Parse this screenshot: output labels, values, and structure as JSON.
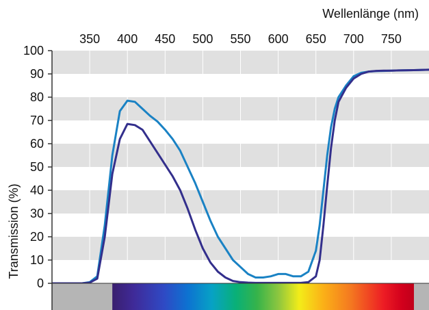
{
  "chart_data": {
    "type": "line",
    "title": "",
    "xlabel": "Wellenlänge (nm)",
    "ylabel": "Transmission (%)",
    "x_ticks": [
      350,
      400,
      450,
      500,
      550,
      600,
      650,
      700,
      750
    ],
    "y_ticks": [
      0,
      10,
      20,
      30,
      40,
      50,
      60,
      70,
      80,
      90,
      100
    ],
    "xlim": [
      300,
      800
    ],
    "ylim": [
      0,
      100
    ],
    "x_axis_position": "top",
    "grid": "horizontal alternating bands and vertical lines",
    "band_colors": [
      "#e0e0e0",
      "#ffffff"
    ],
    "spectrum_strip": {
      "from_nm": 380,
      "to_nm": 780,
      "side_color": "#b5b5b5"
    },
    "series": [
      {
        "color": "#1a82c4",
        "x": [
          300,
          340,
          350,
          360,
          370,
          380,
          390,
          400,
          410,
          420,
          430,
          440,
          450,
          460,
          470,
          480,
          490,
          500,
          510,
          520,
          530,
          540,
          550,
          560,
          570,
          580,
          590,
          600,
          610,
          620,
          630,
          640,
          650,
          655,
          660,
          665,
          670,
          675,
          680,
          690,
          700,
          710,
          720,
          730,
          740,
          750,
          760,
          780,
          800
        ],
        "y": [
          0,
          0,
          0.5,
          3,
          25,
          55,
          74,
          78.5,
          78,
          75,
          72,
          69.5,
          66,
          62,
          57,
          50,
          43,
          35,
          27,
          20,
          15,
          10,
          7,
          4,
          2.5,
          2.5,
          3,
          4,
          4,
          3,
          3,
          5,
          14,
          25,
          40,
          55,
          67,
          75,
          80,
          85,
          89,
          90.5,
          91,
          91.2,
          91.3,
          91.4,
          91.5,
          91.6,
          91.8
        ]
      },
      {
        "color": "#332f8c",
        "x": [
          300,
          340,
          350,
          360,
          370,
          380,
          390,
          400,
          410,
          420,
          430,
          440,
          450,
          460,
          470,
          480,
          490,
          500,
          510,
          520,
          530,
          540,
          550,
          560,
          570,
          580,
          590,
          600,
          610,
          620,
          630,
          640,
          650,
          655,
          660,
          665,
          670,
          675,
          680,
          690,
          700,
          710,
          720,
          730,
          740,
          750,
          760,
          780,
          800
        ],
        "y": [
          0,
          0,
          0.3,
          2,
          20,
          47,
          62,
          68.5,
          68,
          66,
          61,
          56,
          51,
          46,
          40,
          32,
          23,
          15,
          9,
          5,
          2.5,
          1,
          0.5,
          0.3,
          0.2,
          0.2,
          0.2,
          0.2,
          0.2,
          0.2,
          0.2,
          0.5,
          3,
          10,
          25,
          42,
          58,
          70,
          78,
          84,
          88,
          90,
          91,
          91.3,
          91.4,
          91.4,
          91.5,
          91.6,
          91.8
        ]
      }
    ]
  }
}
